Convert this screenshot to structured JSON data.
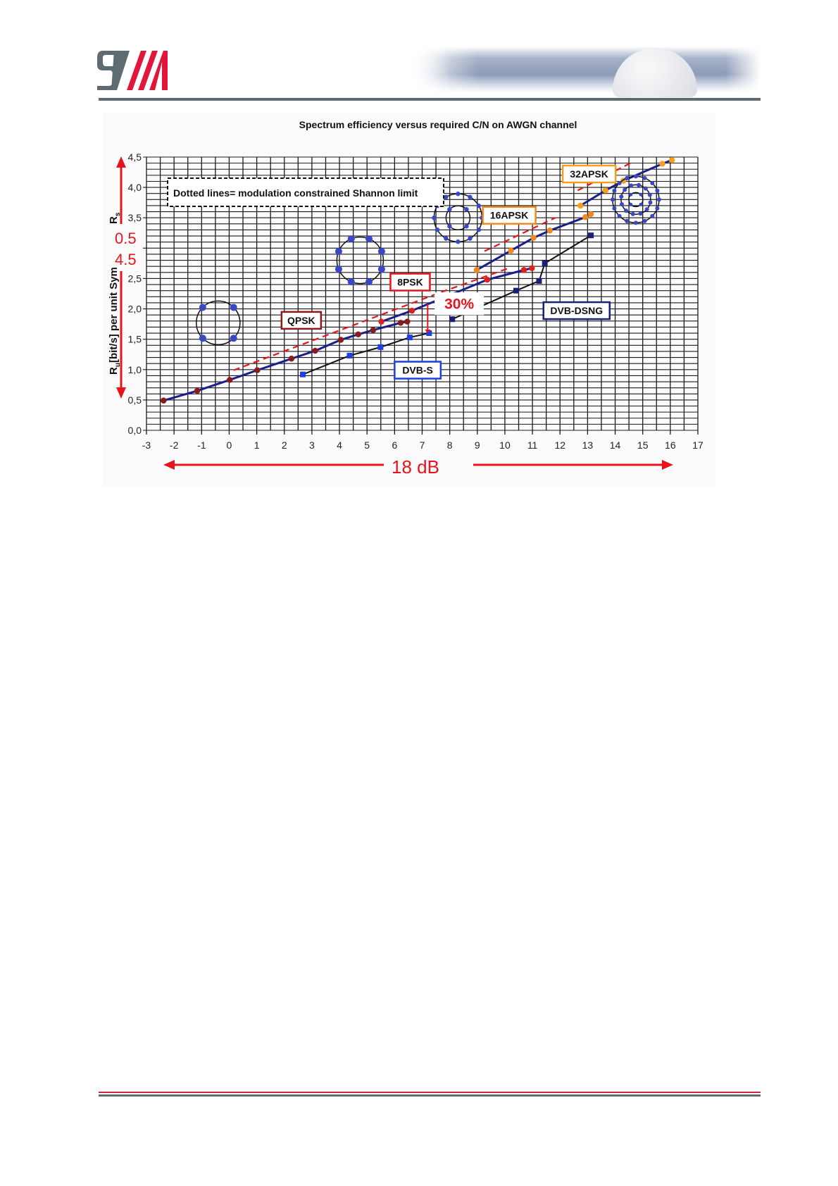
{
  "header": {
    "logo_text": "STM"
  },
  "chart_data": {
    "type": "line",
    "title": "Spectrum efficiency versus required C/N  on AWGN channel",
    "xlim": [
      -3,
      17
    ],
    "ylim": [
      0,
      4.5
    ],
    "x_ticks": [
      "-3",
      "-2",
      "-1",
      "0",
      "1",
      "2",
      "3",
      "4",
      "5",
      "6",
      "7",
      "8",
      "9",
      "10",
      "11",
      "12",
      "13",
      "14",
      "15",
      "16",
      "17"
    ],
    "y_ticks": [
      {
        "v": 0,
        "label": "0,0"
      },
      {
        "v": 0.5,
        "label": "0,5"
      },
      {
        "v": 1,
        "label": "1,0"
      },
      {
        "v": 1.5,
        "label": "1,5"
      },
      {
        "v": 2,
        "label": "2,0"
      },
      {
        "v": 2.5,
        "label": "2,5"
      },
      {
        "v": 3.5,
        "label": "3,5"
      },
      {
        "v": 4,
        "label": "4,0"
      },
      {
        "v": 4.5,
        "label": "4,5"
      }
    ],
    "ylabel_main": "R",
    "ylabel_main_sub": "u",
    "ylabel_rest": "[bit/s] per unit Sym",
    "ylabel_top": "R",
    "ylabel_top_sub": "s",
    "grid": true,
    "overlay_red_numbers": [
      "0.5",
      "4.5"
    ],
    "annotation_box": "Dotted lines= modulation constrained Shannon limit",
    "percent_label": "30%",
    "range_label": "18 dB",
    "series": [
      {
        "name": "QPSK",
        "color": "#8b1a1a",
        "line": "#1a1f8c",
        "marker": "circle",
        "x": [
          -2.38,
          -1.16,
          0.02,
          1.02,
          2.26,
          3.12,
          4.05,
          4.68,
          5.22,
          6.22,
          6.46
        ],
        "y": [
          0.49,
          0.65,
          0.83,
          0.99,
          1.18,
          1.31,
          1.49,
          1.58,
          1.65,
          1.77,
          1.79
        ]
      },
      {
        "name": "8PSK",
        "color": "#e0201c",
        "line": "#1a1f8c",
        "marker": "circle",
        "x": [
          5.52,
          6.63,
          9.36,
          10.69,
          10.98
        ],
        "y": [
          1.79,
          1.97,
          2.48,
          2.64,
          2.67
        ]
      },
      {
        "name": "16APSK",
        "color": "#f08a1c",
        "line": "#1a1f8c",
        "marker": "circle",
        "x": [
          8.98,
          10.22,
          11.04,
          11.63,
          12.92,
          13.12
        ],
        "y": [
          2.64,
          2.96,
          3.17,
          3.29,
          3.51,
          3.56
        ]
      },
      {
        "name": "32APSK",
        "color": "#f5a01c",
        "line": "#1a1f8c",
        "marker": "circle",
        "x": [
          12.74,
          13.65,
          14.3,
          15.71,
          16.06
        ],
        "y": [
          3.7,
          3.95,
          4.11,
          4.39,
          4.45
        ]
      },
      {
        "name": "DVB-S",
        "color": "#1f3fe0",
        "line": "#111",
        "marker": "square",
        "x": [
          2.67,
          4.37,
          5.49,
          6.55,
          7.25
        ],
        "y": [
          0.92,
          1.23,
          1.37,
          1.53,
          1.6
        ]
      },
      {
        "name": "DVB-DSNG",
        "color": "#1a1f7a",
        "line": "#111",
        "marker": "square",
        "x": [
          8.09,
          10.41,
          11.24,
          11.45,
          13.12
        ],
        "y": [
          1.83,
          2.3,
          2.46,
          2.75,
          3.21
        ]
      }
    ],
    "shannon_limits": [
      {
        "x": [
          0.16,
          7.72,
          10.2
        ],
        "y": [
          0.99,
          2.28,
          2.68
        ]
      },
      {
        "x": [
          9.26,
          11.83
        ],
        "y": [
          2.95,
          3.5
        ]
      },
      {
        "x": [
          12.64,
          14.55
        ],
        "y": [
          3.95,
          4.4
        ]
      }
    ],
    "colors": {
      "accent_red": "#e8141c",
      "navy": "#1a1f8c",
      "grid": "#1a1a1a"
    }
  }
}
